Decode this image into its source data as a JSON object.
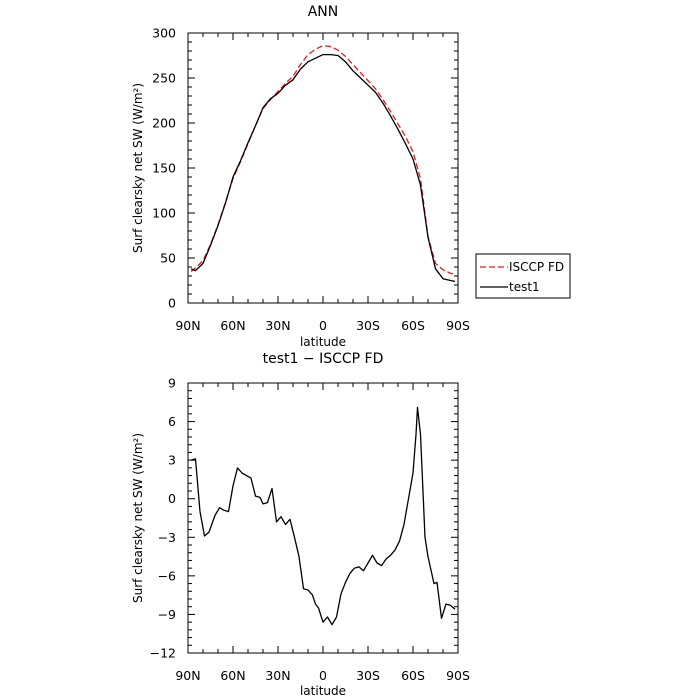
{
  "chart_data": [
    {
      "type": "line",
      "title": "ANN",
      "xlabel": "latitude",
      "ylabel": "Surf clearsky net SW (W/m²)",
      "xlim": [
        90,
        -90
      ],
      "ylim": [
        0,
        300
      ],
      "xticks": [
        90,
        60,
        30,
        0,
        -30,
        -60,
        -90
      ],
      "xtick_labels": [
        "90N",
        "60N",
        "30N",
        "0",
        "30S",
        "60S",
        "90S"
      ],
      "yticks": [
        0,
        50,
        100,
        150,
        200,
        250,
        300
      ],
      "ytick_labels": [
        "0",
        "50",
        "100",
        "150",
        "200",
        "250",
        "300"
      ],
      "legend_position": "right",
      "series": [
        {
          "name": "ISCCP FD",
          "color": "#e8191b",
          "dash": "dashed",
          "x": [
            88,
            85,
            80,
            75,
            70,
            65,
            60,
            55,
            50,
            45,
            40,
            35,
            30,
            25,
            20,
            15,
            10,
            5,
            0,
            -5,
            -10,
            -15,
            -20,
            -25,
            -30,
            -35,
            -40,
            -45,
            -50,
            -55,
            -60,
            -65,
            -70,
            -75,
            -80,
            -85,
            -88
          ],
          "y": [
            35,
            39,
            47,
            65,
            87,
            112,
            138,
            157,
            177,
            197,
            216,
            226,
            235,
            244,
            252,
            265,
            276,
            282,
            286,
            285,
            281,
            274,
            265,
            256,
            247,
            238,
            226,
            213,
            199,
            185,
            168,
            138,
            74,
            44,
            37,
            33,
            32
          ]
        },
        {
          "name": "test1",
          "color": "#000000",
          "dash": "solid",
          "x": [
            88,
            85,
            80,
            75,
            70,
            65,
            60,
            55,
            50,
            45,
            40,
            35,
            30,
            25,
            20,
            15,
            10,
            5,
            0,
            -5,
            -10,
            -15,
            -20,
            -25,
            -30,
            -35,
            -40,
            -45,
            -50,
            -55,
            -60,
            -65,
            -70,
            -75,
            -80,
            -85,
            -88
          ],
          "y": [
            38,
            36,
            44,
            64,
            86,
            111,
            140,
            158,
            178,
            197,
            217,
            227,
            233,
            242,
            248,
            260,
            268,
            272,
            276,
            276,
            275,
            268,
            258,
            250,
            242,
            234,
            222,
            208,
            193,
            177,
            160,
            131,
            73,
            38,
            27,
            25,
            24
          ]
        }
      ]
    },
    {
      "type": "line",
      "title": "test1 − ISCCP FD",
      "xlabel": "latitude",
      "ylabel": "Surf clearsky net SW (W/m²)",
      "xlim": [
        90,
        -90
      ],
      "ylim": [
        -12,
        9
      ],
      "xticks": [
        90,
        60,
        30,
        0,
        -30,
        -60,
        -90
      ],
      "xtick_labels": [
        "90N",
        "60N",
        "30N",
        "0",
        "30S",
        "60S",
        "90S"
      ],
      "yticks": [
        -12,
        -9,
        -6,
        -3,
        0,
        3,
        6,
        9
      ],
      "ytick_labels": [
        "−12",
        "−9",
        "−6",
        "−3",
        "0",
        "3",
        "6",
        "9"
      ],
      "series": [
        {
          "name": "",
          "color": "#000000",
          "dash": "solid",
          "x": [
            88,
            85,
            82,
            79,
            76,
            72,
            69,
            66,
            63,
            60,
            57,
            54,
            51,
            48,
            45,
            42,
            40,
            37,
            34,
            31,
            28,
            25,
            22,
            19,
            16,
            13,
            10,
            7,
            5,
            3,
            0,
            -3,
            -6,
            -9,
            -12,
            -15,
            -18,
            -21,
            -24,
            -27,
            -30,
            -33,
            -36,
            -39,
            -42,
            -45,
            -48,
            -51,
            -54,
            -57,
            -60,
            -62,
            -63,
            -65,
            -68,
            -70,
            -74,
            -76,
            -79,
            -82,
            -85,
            -88
          ],
          "y": [
            3.0,
            3.1,
            -1.0,
            -2.9,
            -2.6,
            -1.3,
            -0.7,
            -0.9,
            -1.0,
            1.0,
            2.4,
            2.0,
            1.8,
            1.6,
            0.2,
            0.1,
            -0.4,
            -0.3,
            0.8,
            -1.8,
            -1.4,
            -2.0,
            -1.6,
            -3.0,
            -4.5,
            -7.0,
            -7.1,
            -7.5,
            -8.2,
            -8.5,
            -9.6,
            -9.2,
            -9.8,
            -9.2,
            -7.4,
            -6.5,
            -5.8,
            -5.4,
            -5.3,
            -5.6,
            -5.0,
            -4.4,
            -5.0,
            -5.2,
            -4.7,
            -4.4,
            -4.0,
            -3.3,
            -2.0,
            0.0,
            2.0,
            5.0,
            7.1,
            5.0,
            -3.0,
            -4.5,
            -6.6,
            -6.5,
            -9.3,
            -8.2,
            -8.3,
            -8.6
          ]
        }
      ]
    }
  ]
}
